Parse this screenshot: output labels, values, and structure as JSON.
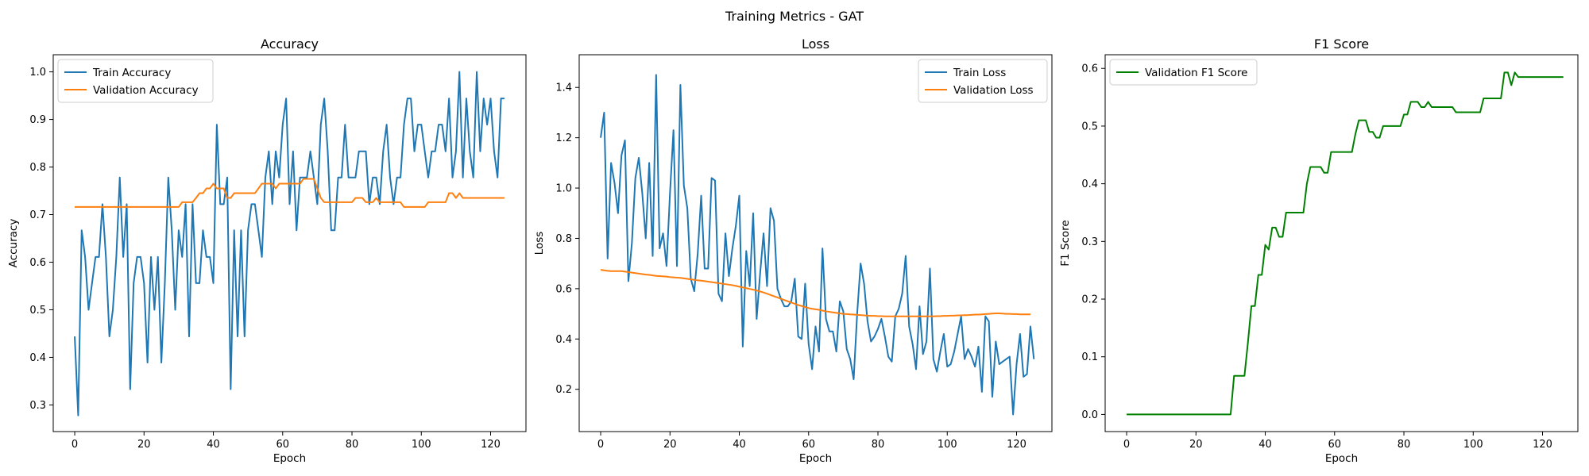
{
  "figure": {
    "suptitle": "Training Metrics - GAT"
  },
  "colors": {
    "blue": "#1f77b4",
    "orange": "#ff7f0e",
    "green": "#008000",
    "axis": "#000000",
    "legend_border": "#cccccc"
  },
  "chart_data": [
    {
      "type": "line",
      "title": "Accuracy",
      "xlabel": "Epoch",
      "ylabel": "Accuracy",
      "xlim": [
        -6.2,
        130.2
      ],
      "ylim": [
        0.244,
        1.036
      ],
      "xticks": [
        0,
        20,
        40,
        60,
        80,
        100,
        120
      ],
      "yticks": [
        0.3,
        0.4,
        0.5,
        0.6,
        0.7,
        0.8,
        0.9,
        1.0
      ],
      "ytick_labels": [
        "0.3",
        "0.4",
        "0.5",
        "0.6",
        "0.7",
        "0.8",
        "0.9",
        "1.0"
      ],
      "grid": false,
      "legend": "upper-left",
      "series": [
        {
          "name": "Train Accuracy",
          "color": "#1f77b4",
          "values": [
            0.444,
            0.278,
            0.667,
            0.611,
            0.5,
            0.556,
            0.611,
            0.611,
            0.722,
            0.611,
            0.444,
            0.5,
            0.611,
            0.778,
            0.611,
            0.722,
            0.333,
            0.556,
            0.611,
            0.611,
            0.556,
            0.389,
            0.611,
            0.5,
            0.611,
            0.389,
            0.556,
            0.778,
            0.667,
            0.5,
            0.667,
            0.611,
            0.722,
            0.444,
            0.722,
            0.556,
            0.556,
            0.667,
            0.611,
            0.611,
            0.556,
            0.889,
            0.722,
            0.722,
            0.778,
            0.333,
            0.667,
            0.444,
            0.667,
            0.444,
            0.667,
            0.722,
            0.722,
            0.667,
            0.611,
            0.778,
            0.833,
            0.722,
            0.833,
            0.778,
            0.889,
            0.944,
            0.722,
            0.833,
            0.667,
            0.778,
            0.778,
            0.778,
            0.833,
            0.778,
            0.722,
            0.889,
            0.944,
            0.833,
            0.667,
            0.667,
            0.778,
            0.778,
            0.889,
            0.778,
            0.778,
            0.778,
            0.833,
            0.833,
            0.833,
            0.722,
            0.778,
            0.778,
            0.722,
            0.833,
            0.889,
            0.778,
            0.722,
            0.778,
            0.778,
            0.889,
            0.944,
            0.944,
            0.833,
            0.889,
            0.889,
            0.833,
            0.778,
            0.833,
            0.833,
            0.889,
            0.889,
            0.833,
            0.944,
            0.778,
            0.833,
            1.0,
            0.778,
            0.944,
            0.833,
            0.778,
            1.0,
            0.833,
            0.944,
            0.889,
            0.944,
            0.833,
            0.778,
            0.944,
            0.944
          ]
        },
        {
          "name": "Validation Accuracy",
          "color": "#ff7f0e",
          "values": [
            0.716,
            0.716,
            0.716,
            0.716,
            0.716,
            0.716,
            0.716,
            0.716,
            0.716,
            0.716,
            0.716,
            0.716,
            0.716,
            0.716,
            0.716,
            0.716,
            0.716,
            0.716,
            0.716,
            0.716,
            0.716,
            0.716,
            0.716,
            0.716,
            0.716,
            0.716,
            0.716,
            0.716,
            0.716,
            0.716,
            0.716,
            0.726,
            0.726,
            0.726,
            0.726,
            0.735,
            0.745,
            0.745,
            0.755,
            0.755,
            0.765,
            0.755,
            0.755,
            0.755,
            0.735,
            0.735,
            0.745,
            0.745,
            0.745,
            0.745,
            0.745,
            0.745,
            0.745,
            0.755,
            0.765,
            0.765,
            0.765,
            0.765,
            0.755,
            0.765,
            0.765,
            0.765,
            0.765,
            0.765,
            0.765,
            0.765,
            0.775,
            0.775,
            0.775,
            0.775,
            0.755,
            0.735,
            0.726,
            0.726,
            0.726,
            0.726,
            0.726,
            0.726,
            0.726,
            0.726,
            0.726,
            0.735,
            0.735,
            0.735,
            0.726,
            0.726,
            0.726,
            0.735,
            0.726,
            0.726,
            0.726,
            0.726,
            0.726,
            0.726,
            0.726,
            0.716,
            0.716,
            0.716,
            0.716,
            0.716,
            0.716,
            0.716,
            0.726,
            0.726,
            0.726,
            0.726,
            0.726,
            0.726,
            0.745,
            0.745,
            0.735,
            0.745,
            0.735,
            0.735,
            0.735,
            0.735,
            0.735,
            0.735,
            0.735,
            0.735,
            0.735,
            0.735,
            0.735,
            0.735,
            0.735
          ]
        }
      ]
    },
    {
      "type": "line",
      "title": "Loss",
      "xlabel": "Epoch",
      "ylabel": "Loss",
      "xlim": [
        -6.2,
        130.2
      ],
      "ylim": [
        0.032,
        1.53
      ],
      "xticks": [
        0,
        20,
        40,
        60,
        80,
        100,
        120
      ],
      "yticks": [
        0.2,
        0.4,
        0.6,
        0.8,
        1.0,
        1.2,
        1.4
      ],
      "ytick_labels": [
        "0.2",
        "0.4",
        "0.6",
        "0.8",
        "1.0",
        "1.2",
        "1.4"
      ],
      "grid": false,
      "legend": "upper-right",
      "series": [
        {
          "name": "Train Loss",
          "color": "#1f77b4",
          "values": [
            1.2,
            1.3,
            0.72,
            1.1,
            1.02,
            0.9,
            1.13,
            1.19,
            0.63,
            0.78,
            1.04,
            1.12,
            0.98,
            0.8,
            1.1,
            0.73,
            1.45,
            0.76,
            0.82,
            0.69,
            0.98,
            1.23,
            0.69,
            1.41,
            1.01,
            0.92,
            0.64,
            0.59,
            0.74,
            0.97,
            0.68,
            0.68,
            1.04,
            1.03,
            0.58,
            0.55,
            0.82,
            0.65,
            0.76,
            0.85,
            0.97,
            0.37,
            0.75,
            0.61,
            0.9,
            0.48,
            0.66,
            0.82,
            0.61,
            0.92,
            0.87,
            0.6,
            0.56,
            0.53,
            0.53,
            0.55,
            0.64,
            0.41,
            0.4,
            0.62,
            0.38,
            0.28,
            0.45,
            0.35,
            0.76,
            0.48,
            0.43,
            0.43,
            0.35,
            0.55,
            0.51,
            0.36,
            0.32,
            0.24,
            0.5,
            0.7,
            0.62,
            0.47,
            0.39,
            0.41,
            0.44,
            0.48,
            0.41,
            0.33,
            0.31,
            0.49,
            0.52,
            0.58,
            0.73,
            0.45,
            0.38,
            0.28,
            0.53,
            0.34,
            0.39,
            0.68,
            0.32,
            0.27,
            0.35,
            0.42,
            0.29,
            0.3,
            0.35,
            0.42,
            0.49,
            0.32,
            0.36,
            0.33,
            0.29,
            0.37,
            0.19,
            0.49,
            0.47,
            0.17,
            0.39,
            0.3,
            0.31,
            0.32,
            0.33,
            0.1,
            0.3,
            0.42,
            0.25,
            0.26,
            0.45,
            0.32
          ]
        },
        {
          "name": "Validation Loss",
          "color": "#ff7f0e",
          "values": [
            0.675,
            0.673,
            0.671,
            0.67,
            0.67,
            0.67,
            0.67,
            0.668,
            0.666,
            0.664,
            0.662,
            0.66,
            0.658,
            0.656,
            0.655,
            0.653,
            0.651,
            0.65,
            0.649,
            0.648,
            0.646,
            0.645,
            0.644,
            0.643,
            0.641,
            0.639,
            0.637,
            0.635,
            0.633,
            0.632,
            0.63,
            0.628,
            0.626,
            0.624,
            0.622,
            0.62,
            0.618,
            0.616,
            0.614,
            0.611,
            0.608,
            0.605,
            0.602,
            0.599,
            0.596,
            0.593,
            0.589,
            0.585,
            0.58,
            0.575,
            0.57,
            0.565,
            0.56,
            0.555,
            0.55,
            0.545,
            0.54,
            0.535,
            0.531,
            0.527,
            0.523,
            0.52,
            0.518,
            0.516,
            0.513,
            0.51,
            0.508,
            0.506,
            0.504,
            0.502,
            0.5,
            0.499,
            0.498,
            0.497,
            0.496,
            0.495,
            0.494,
            0.493,
            0.492,
            0.492,
            0.491,
            0.491,
            0.49,
            0.49,
            0.49,
            0.49,
            0.49,
            0.49,
            0.49,
            0.49,
            0.49,
            0.49,
            0.49,
            0.49,
            0.49,
            0.49,
            0.49,
            0.491,
            0.491,
            0.492,
            0.492,
            0.493,
            0.493,
            0.494,
            0.494,
            0.495,
            0.495,
            0.496,
            0.497,
            0.497,
            0.498,
            0.499,
            0.5,
            0.501,
            0.502,
            0.502,
            0.501,
            0.5,
            0.5,
            0.499,
            0.499,
            0.498,
            0.498,
            0.498,
            0.498
          ]
        }
      ]
    },
    {
      "type": "line",
      "title": "F1 Score",
      "xlabel": "Epoch",
      "ylabel": "F1 Score",
      "xlim": [
        -6.2,
        130.2
      ],
      "ylim": [
        -0.0297,
        0.6237
      ],
      "xticks": [
        0,
        20,
        40,
        60,
        80,
        100,
        120
      ],
      "yticks": [
        0.0,
        0.1,
        0.2,
        0.3,
        0.4,
        0.5,
        0.6
      ],
      "ytick_labels": [
        "0.0",
        "0.1",
        "0.2",
        "0.3",
        "0.4",
        "0.5",
        "0.6"
      ],
      "grid": false,
      "legend": "upper-left",
      "series": [
        {
          "name": "Validation F1 Score",
          "color": "#008000",
          "values": [
            0,
            0,
            0,
            0,
            0,
            0,
            0,
            0,
            0,
            0,
            0,
            0,
            0,
            0,
            0,
            0,
            0,
            0,
            0,
            0,
            0,
            0,
            0,
            0,
            0,
            0,
            0,
            0,
            0,
            0,
            0,
            0.067,
            0.067,
            0.067,
            0.067,
            0.125,
            0.188,
            0.188,
            0.242,
            0.242,
            0.294,
            0.286,
            0.324,
            0.324,
            0.308,
            0.308,
            0.35,
            0.35,
            0.35,
            0.35,
            0.35,
            0.35,
            0.4,
            0.429,
            0.429,
            0.429,
            0.429,
            0.419,
            0.419,
            0.455,
            0.455,
            0.455,
            0.455,
            0.455,
            0.455,
            0.455,
            0.486,
            0.51,
            0.51,
            0.51,
            0.49,
            0.49,
            0.48,
            0.48,
            0.5,
            0.5,
            0.5,
            0.5,
            0.5,
            0.5,
            0.52,
            0.52,
            0.542,
            0.542,
            0.542,
            0.533,
            0.533,
            0.542,
            0.533,
            0.533,
            0.533,
            0.533,
            0.533,
            0.533,
            0.533,
            0.524,
            0.524,
            0.524,
            0.524,
            0.524,
            0.524,
            0.524,
            0.524,
            0.548,
            0.548,
            0.548,
            0.548,
            0.548,
            0.548,
            0.593,
            0.593,
            0.571,
            0.593,
            0.585,
            0.585,
            0.585,
            0.585,
            0.585,
            0.585,
            0.585,
            0.585,
            0.585,
            0.585,
            0.585,
            0.585,
            0.585,
            0.585
          ]
        }
      ]
    }
  ]
}
